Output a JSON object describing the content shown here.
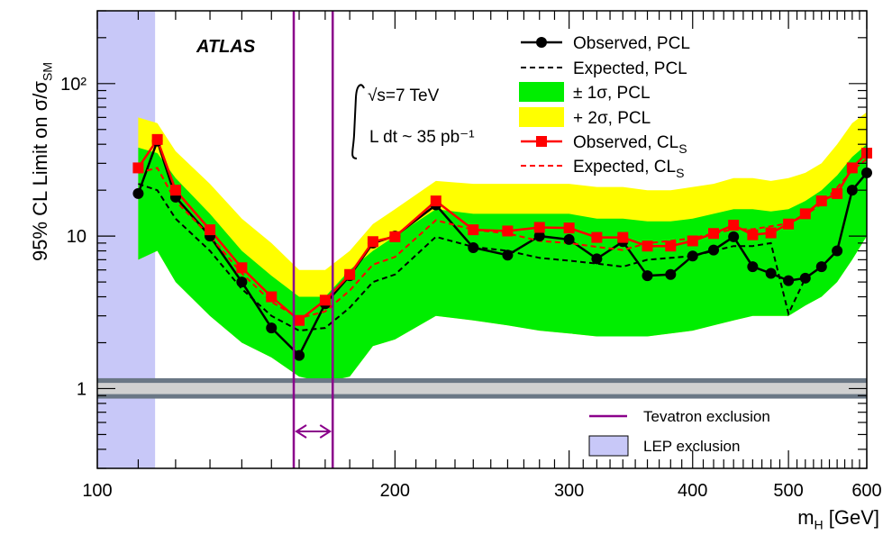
{
  "chart_data": {
    "type": "line",
    "experiment": "ATLAS",
    "ylabel": "95% CL Limit on σ/σ",
    "ylabel_sub": "SM",
    "xlabel": "m",
    "xlabel_sub": "H",
    "xlabel_unit": " [GeV]",
    "xscale": "log",
    "yscale": "log",
    "xlim": [
      100,
      600
    ],
    "ylim": [
      0.3,
      300
    ],
    "x_ticks": [
      100,
      200,
      300,
      400,
      500,
      600
    ],
    "x_tick_labels": [
      "100",
      "200",
      "300",
      "400",
      "500",
      "600"
    ],
    "y_ticks": [
      1,
      10,
      100
    ],
    "y_tick_labels": [
      "1",
      "10",
      "10²"
    ],
    "energy_label": "√s=7 TeV",
    "lumi_label": "L dt ~ 35 pb⁻¹",
    "x": [
      110,
      115,
      120,
      130,
      140,
      150,
      160,
      170,
      180,
      190,
      200,
      220,
      240,
      260,
      280,
      300,
      320,
      340,
      360,
      380,
      400,
      420,
      440,
      460,
      480,
      500,
      520,
      540,
      560,
      580,
      600
    ],
    "band_2sigma": {
      "name": "+ 2σ, PCL",
      "upper": [
        60,
        55,
        36,
        22,
        13,
        9,
        6,
        6,
        8,
        12,
        15,
        23,
        22,
        22,
        22,
        22,
        21,
        21,
        20,
        20,
        21,
        22,
        24,
        24,
        23,
        24,
        26,
        30,
        40,
        55,
        65
      ]
    },
    "band_1sigma": {
      "name": "± 1σ, PCL",
      "upper": [
        38,
        35,
        24,
        14,
        8,
        5.5,
        4,
        4,
        6,
        8,
        10,
        15,
        14,
        14,
        14,
        14,
        13,
        13,
        12.5,
        12.5,
        13,
        14,
        15,
        15,
        14.5,
        15,
        17,
        20,
        25,
        33,
        40
      ],
      "lower": [
        7,
        8,
        5,
        3,
        2,
        1.6,
        1.2,
        1.1,
        1.2,
        1.9,
        2.1,
        3,
        2.8,
        2.6,
        2.4,
        2.3,
        2.2,
        2.2,
        2.2,
        2.3,
        2.4,
        2.6,
        2.8,
        3,
        3,
        3,
        3.5,
        4,
        5,
        7,
        10
      ]
    },
    "series": [
      {
        "name": "Observed, PCL",
        "style": "solid-black-circles",
        "color": "#000000",
        "values": [
          19,
          42,
          18,
          10,
          5,
          2.5,
          1.65,
          3.6,
          5.5,
          9,
          10,
          16,
          8.4,
          7.5,
          10,
          9.5,
          7.1,
          9.2,
          5.5,
          5.6,
          7.4,
          8.1,
          9.9,
          6.3,
          5.7,
          5.1,
          5.3,
          6.3,
          8,
          20,
          26
        ]
      },
      {
        "name": "Expected, PCL",
        "style": "dashed-black",
        "color": "#000000",
        "values": [
          22,
          20,
          13,
          8,
          4.5,
          3,
          2.4,
          2.5,
          3.4,
          5,
          5.6,
          9.9,
          8.5,
          8,
          7.2,
          6.9,
          6.6,
          6.3,
          7,
          7.2,
          7.4,
          8,
          8.6,
          8.6,
          9,
          3.1,
          5.3,
          6.3,
          8,
          20,
          26
        ]
      },
      {
        "name": "Observed, CL",
        "name_sub": "S",
        "style": "solid-red-squares",
        "color": "#ff0000",
        "values": [
          28,
          43,
          20,
          11,
          6.2,
          4,
          2.8,
          3.8,
          5.6,
          9.2,
          9.9,
          17,
          11,
          10.8,
          11.4,
          11.3,
          9.8,
          9.8,
          8.6,
          8.6,
          9.3,
          10.4,
          11.8,
          10.2,
          10.5,
          12,
          14,
          17,
          19,
          28,
          35
        ]
      },
      {
        "name": "Expected, CL",
        "name_sub": "S",
        "style": "dashed-red",
        "color": "#ff0000",
        "values": [
          26,
          28,
          17,
          10,
          5.7,
          3.7,
          2.9,
          3.2,
          4.4,
          6.5,
          7.3,
          12.7,
          11,
          10.4,
          9.3,
          9,
          8.5,
          8.1,
          9,
          9.3,
          9.7,
          10.4,
          11.1,
          11.1,
          11.6,
          12.1,
          13.7,
          16.3,
          20.8,
          27,
          32
        ]
      }
    ],
    "tevatron": {
      "name": "Tevatron exclusion",
      "x_range": [
        158,
        173
      ],
      "color": "#8b008b"
    },
    "lep": {
      "name": "LEP exclusion",
      "x_range": [
        100,
        114.4
      ],
      "color": "#c8c8f8"
    },
    "unity_band": {
      "y_center": 1,
      "outer": [
        0.86,
        1.17
      ],
      "inner": [
        0.92,
        1.09
      ]
    },
    "colors": {
      "band_2sigma": "#ffff00",
      "band_1sigma": "#00ee00",
      "unity_outer": "#6a7785",
      "unity_inner": "#d0d0d0"
    }
  }
}
